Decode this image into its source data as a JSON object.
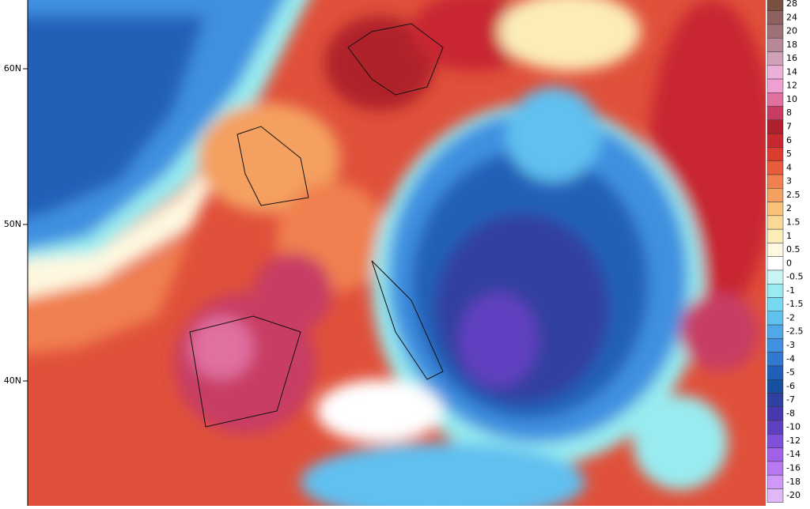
{
  "axis": {
    "lat_labels": [
      "60N",
      "50N",
      "40N"
    ]
  },
  "colorbar": {
    "entries": [
      {
        "label": "28",
        "color": "#7a5040"
      },
      {
        "label": "24",
        "color": "#8e6060"
      },
      {
        "label": "20",
        "color": "#a07078"
      },
      {
        "label": "18",
        "color": "#b88898"
      },
      {
        "label": "16",
        "color": "#d0a0b8"
      },
      {
        "label": "14",
        "color": "#eab0d8"
      },
      {
        "label": "12",
        "color": "#f0a0d0"
      },
      {
        "label": "10",
        "color": "#e070a0"
      },
      {
        "label": "8",
        "color": "#c83c64"
      },
      {
        "label": "7",
        "color": "#b0202c"
      },
      {
        "label": "6",
        "color": "#c82830"
      },
      {
        "label": "5",
        "color": "#dc3c30"
      },
      {
        "label": "4",
        "color": "#e85c3c"
      },
      {
        "label": "3",
        "color": "#f08050"
      },
      {
        "label": "2.5",
        "color": "#f4a060"
      },
      {
        "label": "2",
        "color": "#f8c078"
      },
      {
        "label": "1.5",
        "color": "#fad898"
      },
      {
        "label": "1",
        "color": "#fcecb8"
      },
      {
        "label": "0.5",
        "color": "#fef8e0"
      },
      {
        "label": "0",
        "color": "#ffffff"
      },
      {
        "label": "-0.5",
        "color": "#c8f4f4"
      },
      {
        "label": "-1",
        "color": "#98ecf0"
      },
      {
        "label": "-1.5",
        "color": "#78d8f0"
      },
      {
        "label": "-2",
        "color": "#60c0f0"
      },
      {
        "label": "-2.5",
        "color": "#50a8e8"
      },
      {
        "label": "-3",
        "color": "#4090e0"
      },
      {
        "label": "-4",
        "color": "#3078d0"
      },
      {
        "label": "-5",
        "color": "#2060b8"
      },
      {
        "label": "-6",
        "color": "#1850a0"
      },
      {
        "label": "-7",
        "color": "#3040a0"
      },
      {
        "label": "-8",
        "color": "#4838b0"
      },
      {
        "label": "-10",
        "color": "#6040c0"
      },
      {
        "label": "-12",
        "color": "#8050d8"
      },
      {
        "label": "-14",
        "color": "#a060e8"
      },
      {
        "label": "-16",
        "color": "#b878f0"
      },
      {
        "label": "-18",
        "color": "#d098f8"
      },
      {
        "label": "-20",
        "color": "#e0b8f8"
      }
    ]
  }
}
